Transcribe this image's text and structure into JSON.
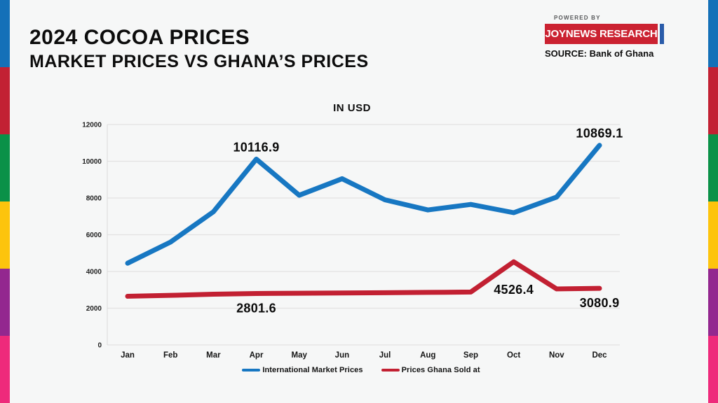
{
  "header": {
    "title": "2024 COCOA PRICES",
    "subtitle": "MARKET PRICES VS GHANA’S PRICES"
  },
  "branding": {
    "powered_by": "POWERED BY",
    "logo_text": "JOYNEWS RESEARCH",
    "logo_bg": "#cb2231",
    "logo_accent": "#2a5caa",
    "source_label": "SOURCE:",
    "source_value": " Bank of Ghana"
  },
  "side_bars": {
    "colors": [
      "#1470b8",
      "#c22133",
      "#0a9148",
      "#fdc40d",
      "#93278f",
      "#ee2a7b"
    ]
  },
  "chart_data": {
    "type": "line",
    "title": "IN USD",
    "categories": [
      "Jan",
      "Feb",
      "Mar",
      "Apr",
      "May",
      "Jun",
      "Jul",
      "Aug",
      "Sep",
      "Oct",
      "Nov",
      "Dec"
    ],
    "series": [
      {
        "name": "International Market Prices",
        "color": "#1777c2",
        "values": [
          4450,
          5600,
          7250,
          10116.9,
          8150,
          9050,
          7900,
          7350,
          7650,
          7200,
          8050,
          10869.1
        ],
        "labels": {
          "3": "10116.9",
          "11": "10869.1"
        },
        "label_position": "above"
      },
      {
        "name": "Prices Ghana Sold at",
        "color": "#c22032",
        "values": [
          2650,
          2700,
          2760,
          2801.6,
          2815,
          2830,
          2845,
          2860,
          2880,
          4526.4,
          3050,
          3080.9
        ],
        "labels": {
          "3": "2801.6",
          "9": "4526.4",
          "11": "3080.9"
        },
        "label_position": "below"
      }
    ],
    "ylim": [
      0,
      12000
    ],
    "ytick_step": 2000,
    "grid": true,
    "legend_position": "bottom"
  }
}
